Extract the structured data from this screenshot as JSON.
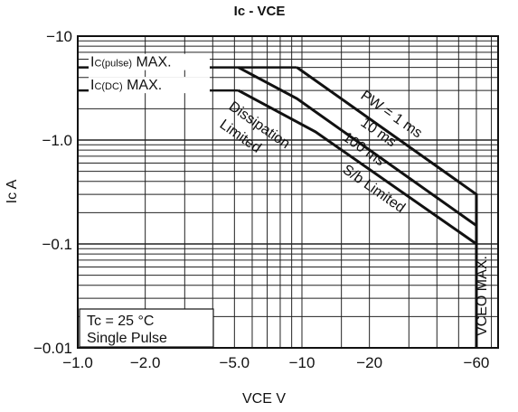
{
  "chart_data": {
    "type": "line",
    "title": "Ic - VCE",
    "xlabel": "VCE V",
    "ylabel": "Ic A",
    "x_scale": "log",
    "y_scale": "log",
    "xlim": [
      -1.0,
      -75
    ],
    "ylim": [
      -0.01,
      -10
    ],
    "grid": true,
    "x_ticks": [
      {
        "value": 1.0,
        "label": "−1.0"
      },
      {
        "value": 2.0,
        "label": "−2.0"
      },
      {
        "value": 5.0,
        "label": "−5.0"
      },
      {
        "value": 10,
        "label": "−10"
      },
      {
        "value": 20,
        "label": "−20"
      },
      {
        "value": 60,
        "label": "−60"
      }
    ],
    "y_ticks": [
      {
        "value": 10,
        "label": "−10"
      },
      {
        "value": 1.0,
        "label": "−1.0"
      },
      {
        "value": 0.1,
        "label": "−0.1"
      },
      {
        "value": 0.01,
        "label": "−0.01"
      }
    ],
    "series": [
      {
        "name": "PW = 1 ms",
        "x": [
          1.0,
          9.5,
          60,
          60
        ],
        "y": [
          5,
          5,
          0.3,
          0.01
        ]
      },
      {
        "name": "10 ms",
        "x": [
          1.0,
          5.2,
          9.5,
          60
        ],
        "y": [
          5,
          5,
          2.5,
          0.15
        ]
      },
      {
        "name": "100 ms",
        "x": [
          1.0,
          5.2,
          11.5,
          60
        ],
        "y": [
          3,
          3,
          1.2,
          0.1
        ]
      }
    ],
    "limits": [
      {
        "label_main": "I",
        "label_sub": "C(pulse)",
        "label_tail": " MAX.",
        "value": 5
      },
      {
        "label_main": "I",
        "label_sub": "C(DC)",
        "label_tail": " MAX.",
        "value": 3
      }
    ],
    "annotations": {
      "dissipation_line1": "Dissipation",
      "dissipation_line2": "Limited",
      "pw": "PW = 1 ms",
      "ms10": "10 ms",
      "ms100": "100 ms",
      "sb": "S/b Limited",
      "vceo": "VCEO MAX."
    },
    "legend": {
      "position": "bottom-left",
      "line1": "Tc = 25 °C",
      "line2": "Single Pulse"
    }
  }
}
